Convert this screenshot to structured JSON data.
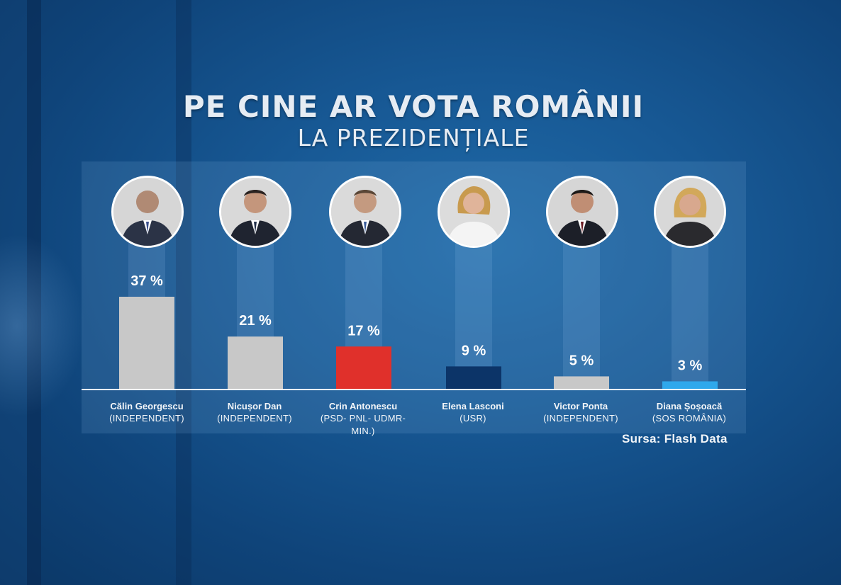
{
  "title": "PE CINE AR VOTA ROMÂNII",
  "subtitle": "LA PREZIDENȚIALE",
  "source": "Sursa: Flash Data",
  "chart_data": {
    "type": "bar",
    "unit": "%",
    "ylim": [
      0,
      37
    ],
    "categories": [
      "Călin Georgescu",
      "Nicușor Dan",
      "Crin Antonescu",
      "Elena Lasconi",
      "Victor Ponta",
      "Diana Șoșoacă"
    ],
    "parties": [
      "(INDEPENDENT)",
      "(INDEPENDENT)",
      "(PSD- PNL- UDMR- MIN.)",
      "(USR)",
      "(INDEPENDENT)",
      "(SOS ROMÂNIA)"
    ],
    "values": [
      37,
      21,
      17,
      9,
      5,
      3
    ],
    "value_labels": [
      "37 %",
      "21 %",
      "17 %",
      "9 %",
      "5 %",
      "3 %"
    ],
    "colors": [
      "#c8c8c8",
      "#c8c8c8",
      "#e0302b",
      "#0c3468",
      "#c8c8c8",
      "#2fa8ec"
    ]
  }
}
